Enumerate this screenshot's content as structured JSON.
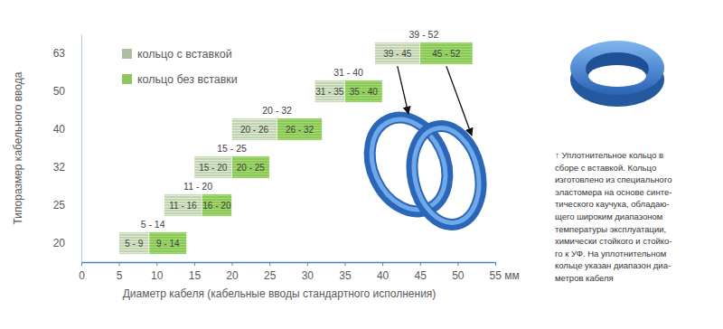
{
  "chart_data": {
    "type": "bar",
    "orientation": "horizontal",
    "x_label": "Диаметр кабеля (кабельные вводы стандартного исполнения)",
    "y_label": "Типоразмер кабельного ввода",
    "categories": [
      "20",
      "25",
      "32",
      "40",
      "50",
      "63"
    ],
    "series": [
      {
        "name": "кольцо с вставкой",
        "color": "#c3d2b5",
        "values": [
          [
            5,
            9
          ],
          [
            11,
            16
          ],
          [
            15,
            20
          ],
          [
            20,
            26
          ],
          [
            31,
            35
          ],
          [
            39,
            45
          ]
        ],
        "value_labels": [
          "5 - 9",
          "11 - 16",
          "15 - 20",
          "20 - 26",
          "31 - 35",
          "39 - 45"
        ]
      },
      {
        "name": "кольцо без вставки",
        "color": "#8cc65c",
        "values": [
          [
            9,
            14
          ],
          [
            16,
            20
          ],
          [
            20,
            25
          ],
          [
            26,
            32
          ],
          [
            35,
            40
          ],
          [
            45,
            52
          ]
        ],
        "value_labels": [
          "9 - 14",
          "16 - 20",
          "20 - 25",
          "26 - 32",
          "35 - 40",
          "45 - 52"
        ]
      }
    ],
    "range_labels": [
      "5 - 14",
      "11 - 20",
      "15 - 25",
      "20 - 32",
      "31 - 40",
      "39 - 52"
    ],
    "xlim": [
      0,
      55
    ],
    "xticks": [
      0,
      5,
      10,
      15,
      20,
      25,
      30,
      35,
      40,
      45,
      50,
      {
        "value": 55,
        "label": "55 мм"
      }
    ],
    "grid": false,
    "legend": "upper left",
    "data_labels": true
  },
  "caption": {
    "lines": [
      "↑ Уплотнительное кольцо в",
      "сборе с вставкой. Кольцо",
      "изготовлено из специального",
      "эластомера на основе синте-",
      "тического каучука, обладаю-",
      "щего широким диапазоном",
      "температуры эксплуатации,",
      "химически стойкого и стойко-",
      "го к УФ. На уплотнительном",
      "кольце указан диапазон диа-",
      "метров кабеля"
    ]
  }
}
